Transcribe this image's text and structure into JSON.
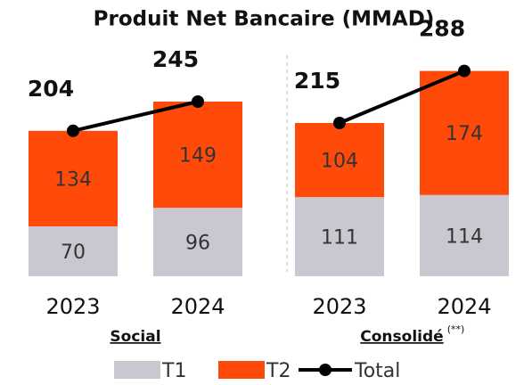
{
  "title": "Produit Net Bancaire (MMAD)",
  "chart_data": [
    {
      "type": "bar",
      "stacked": true,
      "xlabel": "Social",
      "categories": [
        "2023",
        "2024"
      ],
      "series": [
        {
          "name": "T1",
          "color": "#c9c8d0",
          "values": [
            70,
            96
          ]
        },
        {
          "name": "T2",
          "color": "#ff4a0a",
          "values": [
            134,
            149
          ]
        },
        {
          "name": "Total",
          "type": "line",
          "color": "#000000",
          "values": [
            204,
            245
          ]
        }
      ],
      "ylim": [
        0,
        300
      ]
    },
    {
      "type": "bar",
      "stacked": true,
      "xlabel": "Consolidé",
      "note": "(**)",
      "categories": [
        "2023",
        "2024"
      ],
      "series": [
        {
          "name": "T1",
          "color": "#c9c8d0",
          "values": [
            111,
            114
          ]
        },
        {
          "name": "T2",
          "color": "#ff4a0a",
          "values": [
            104,
            174
          ]
        },
        {
          "name": "Total",
          "type": "line",
          "color": "#000000",
          "values": [
            215,
            288
          ]
        }
      ],
      "ylim": [
        0,
        300
      ]
    }
  ]
}
